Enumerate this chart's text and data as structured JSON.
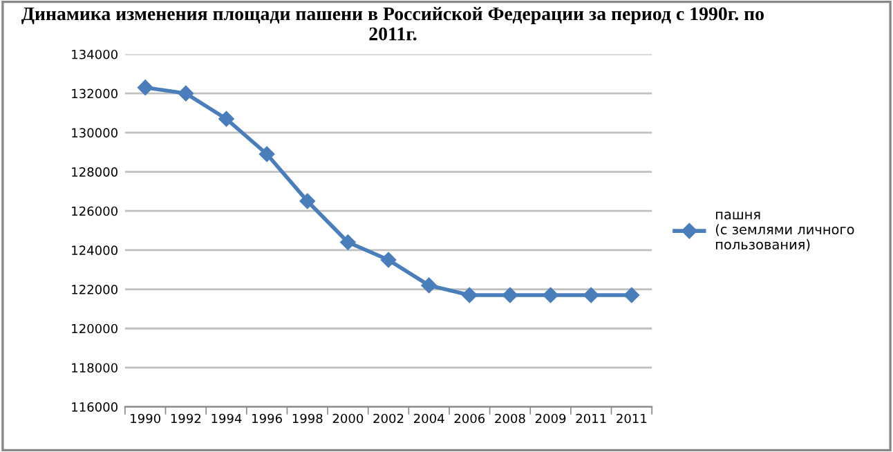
{
  "chart_data": {
    "type": "line",
    "title": "Динамика изменения площади пашени в Российской Федерации за период с 1990г. по 2011г.",
    "categories": [
      "1990",
      "1992",
      "1994",
      "1996",
      "1998",
      "2000",
      "2002",
      "2004",
      "2006",
      "2008",
      "2009",
      "2011",
      "2011"
    ],
    "series": [
      {
        "name": "пашня\n(с землями личного\nпользования)",
        "color": "#4a7ebb",
        "values": [
          132300,
          132000,
          130700,
          128900,
          126500,
          124400,
          123500,
          122200,
          121700,
          121700,
          121700,
          121700,
          121700
        ]
      }
    ],
    "ylim": [
      116000,
      134000
    ],
    "yticks": [
      116000,
      118000,
      120000,
      122000,
      124000,
      126000,
      128000,
      130000,
      132000,
      134000
    ],
    "grid": "y",
    "legend": "right",
    "marker": "diamond",
    "line_style": "solid"
  }
}
